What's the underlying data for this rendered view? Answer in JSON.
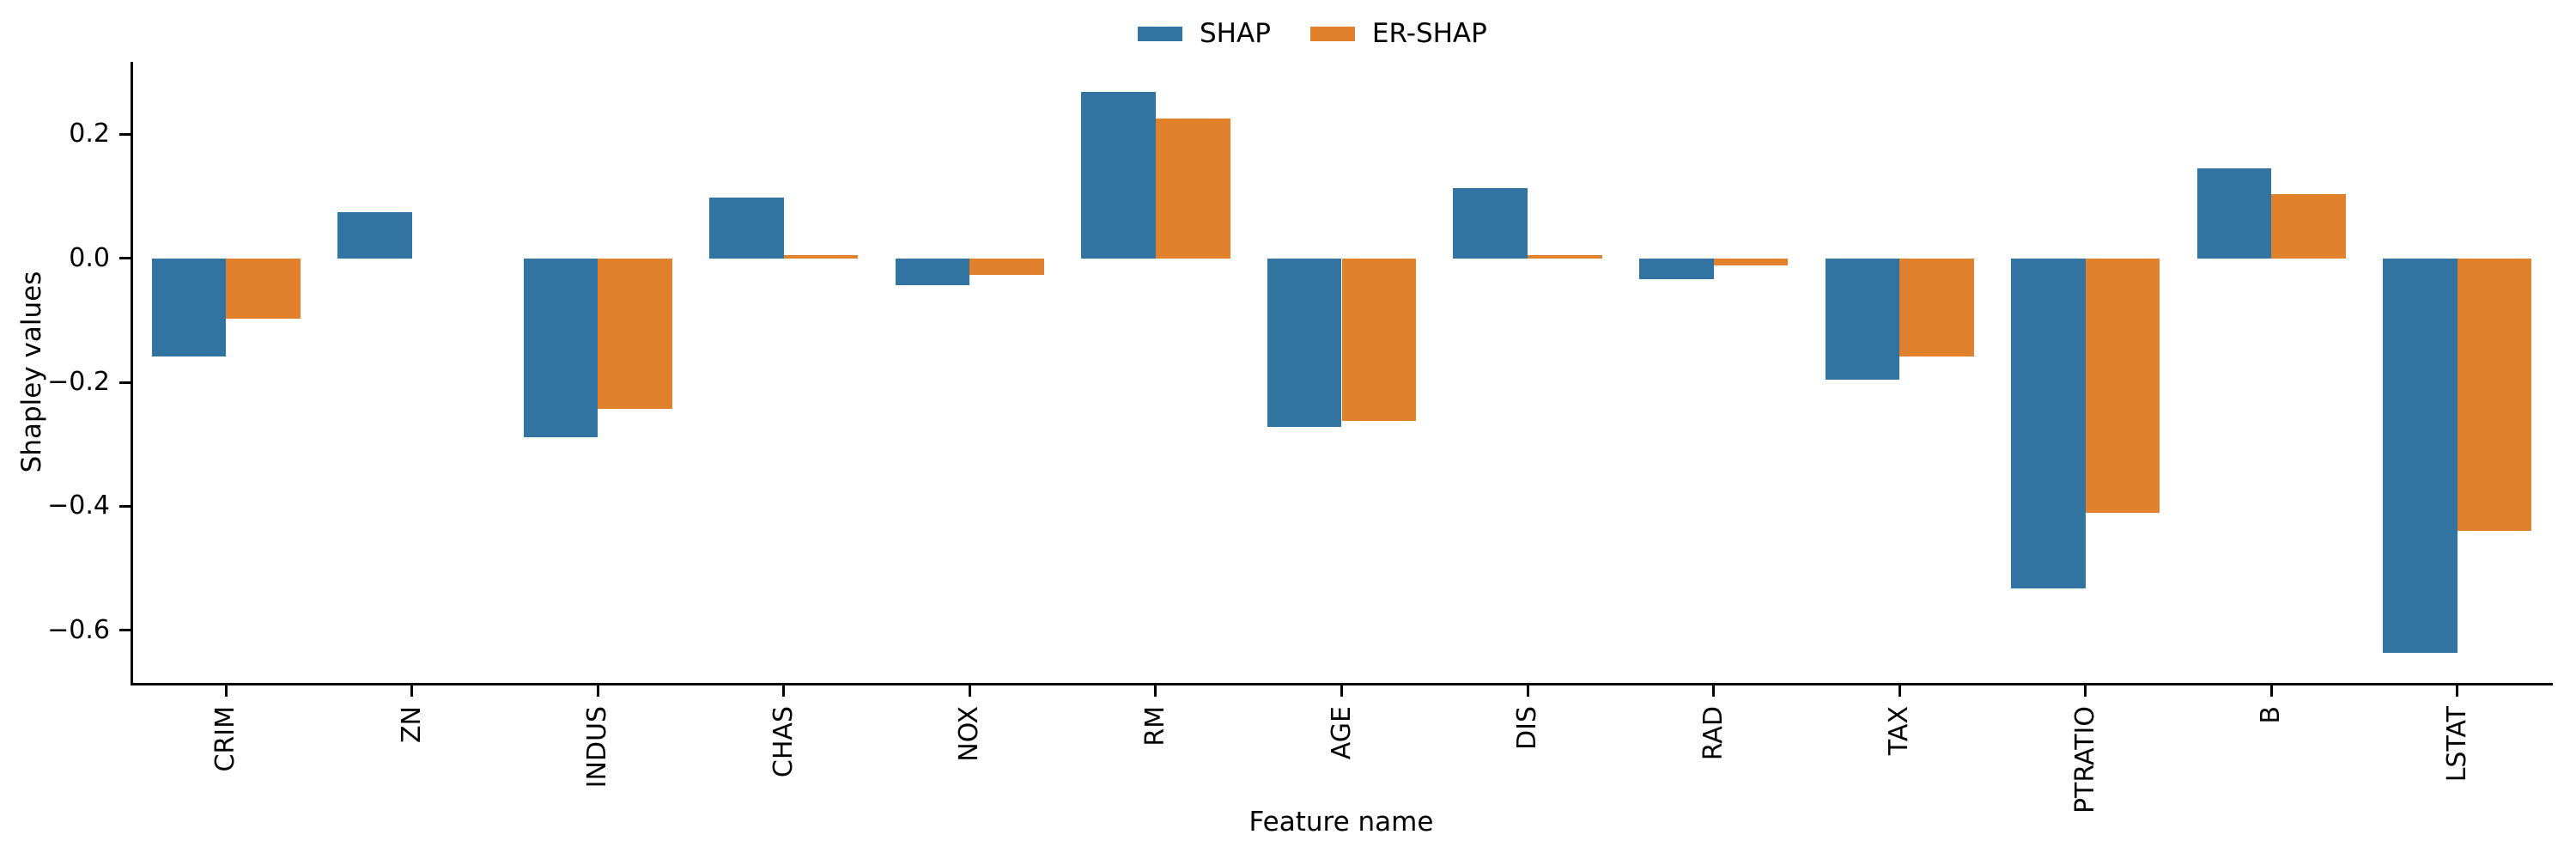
{
  "chart_data": {
    "type": "bar",
    "title": "",
    "xlabel": "Feature name",
    "ylabel": "Shapley values",
    "categories": [
      "CRIM",
      "ZN",
      "INDUS",
      "CHAS",
      "NOX",
      "RM",
      "AGE",
      "DIS",
      "RAD",
      "TAX",
      "PTRATIO",
      "B",
      "LSTAT"
    ],
    "series": [
      {
        "name": "SHAP",
        "color": "#3274a1",
        "values": [
          -0.158,
          0.074,
          -0.289,
          0.098,
          -0.043,
          0.268,
          -0.272,
          0.113,
          -0.034,
          -0.196,
          -0.533,
          0.145,
          -0.636
        ]
      },
      {
        "name": "ER-SHAP",
        "color": "#e1812c",
        "values": [
          -0.097,
          0.0,
          -0.243,
          0.005,
          -0.027,
          0.225,
          -0.262,
          0.005,
          -0.012,
          -0.159,
          -0.41,
          0.104,
          -0.44
        ]
      }
    ],
    "ylim": [
      -0.685,
      0.317
    ],
    "yticks": {
      "values": [
        0.2,
        0.0,
        -0.2,
        -0.4,
        -0.6
      ],
      "labels": [
        "0.2",
        "0.0",
        "−0.2",
        "−0.4",
        "−0.6"
      ]
    },
    "grid": false,
    "legend_position": "upper center",
    "bar_group_width_fraction": 0.8
  },
  "legend": {
    "items": [
      {
        "label": "SHAP",
        "color": "#3274a1"
      },
      {
        "label": "ER-SHAP",
        "color": "#e1812c"
      }
    ]
  }
}
